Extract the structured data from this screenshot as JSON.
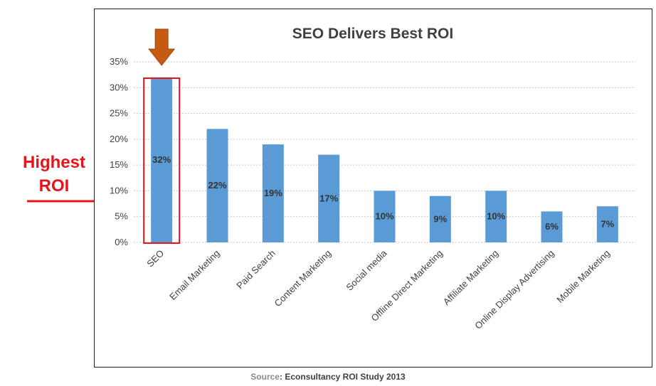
{
  "annotation": {
    "line1": "Highest",
    "line2": "ROI"
  },
  "source": {
    "prefix": "Source",
    "body": ": Econsultancy ROI Study 2013"
  },
  "chart_data": {
    "type": "bar",
    "title": "SEO Delivers Best ROI",
    "categories": [
      "SEO",
      "Email Marketing",
      "Paid Search",
      "Content Marketing",
      "Social media",
      "Offline Direct Marketing",
      "Affiliate Marketing",
      "Online Display Advertising",
      "Mobile Marketing"
    ],
    "values": [
      32,
      22,
      19,
      17,
      10,
      9,
      10,
      6,
      7
    ],
    "data_labels": [
      "32%",
      "22%",
      "19%",
      "17%",
      "10%",
      "9%",
      "10%",
      "6%",
      "7%"
    ],
    "ylim": [
      0,
      35
    ],
    "yticks": [
      0,
      5,
      10,
      15,
      20,
      25,
      30,
      35
    ],
    "ytick_labels": [
      "0%",
      "5%",
      "10%",
      "15%",
      "20%",
      "25%",
      "30%",
      "35%"
    ],
    "xlabel": "",
    "ylabel": "",
    "grid": true,
    "legend": "none",
    "highlight_category": "SEO",
    "colors": {
      "bar": "#5b9bd5",
      "highlight_box": "#e8141b",
      "annotation": "#e8141b",
      "down_arrow": "#c55a11"
    }
  }
}
